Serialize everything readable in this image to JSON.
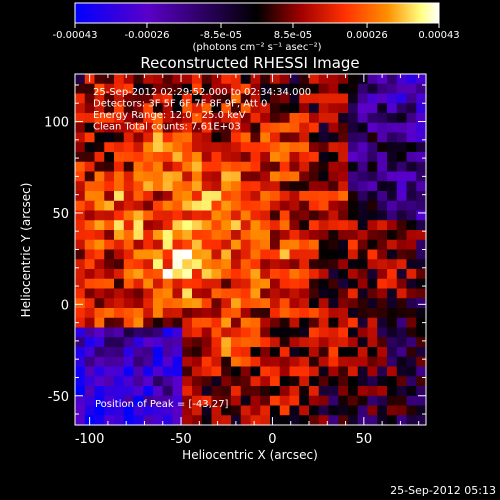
{
  "colorbar": {
    "ticks": [
      "-0.00043",
      "-0.00026",
      "-8.5e-05",
      "8.5e-05",
      "0.00026",
      "0.00043"
    ],
    "unit_label": "(photons cm⁻² s⁻¹ asec⁻²)",
    "range": [
      -0.00043,
      0.00043
    ],
    "colormap": [
      "#0000ff",
      "#5a00c8",
      "#000000",
      "#a00000",
      "#ff3000",
      "#ff9000",
      "#ffff80",
      "#ffffff"
    ]
  },
  "plot": {
    "title": "Reconstructed RHESSI Image",
    "xlabel": "Heliocentric X (arcsec)",
    "ylabel": "Heliocentric Y (arcsec)",
    "info": [
      "25-Sep-2012 02:29:52.000 to 02:34:34.000",
      "Detectors: 3F 5F 6F 7F 8F 9F, Att 0",
      "Energy Range: 12.0 - 25.0 keV",
      "Clean     Total counts: 7.61E+03"
    ],
    "peak_text": "Position of Peak = [-43,27]"
  },
  "footer": {
    "timestamp": "25-Sep-2012 05:13"
  },
  "chart_data": {
    "type": "heatmap",
    "title": "Reconstructed RHESSI Image",
    "xlabel": "Heliocentric X (arcsec)",
    "ylabel": "Heliocentric Y (arcsec)",
    "xlim": [
      -108,
      84
    ],
    "ylim": [
      -66,
      126
    ],
    "xticks": [
      -100,
      -50,
      0,
      50
    ],
    "yticks": [
      -50,
      0,
      50,
      100
    ],
    "peak": {
      "x": -43,
      "y": 27
    },
    "grid": false,
    "legend": "colorbar-top"
  }
}
